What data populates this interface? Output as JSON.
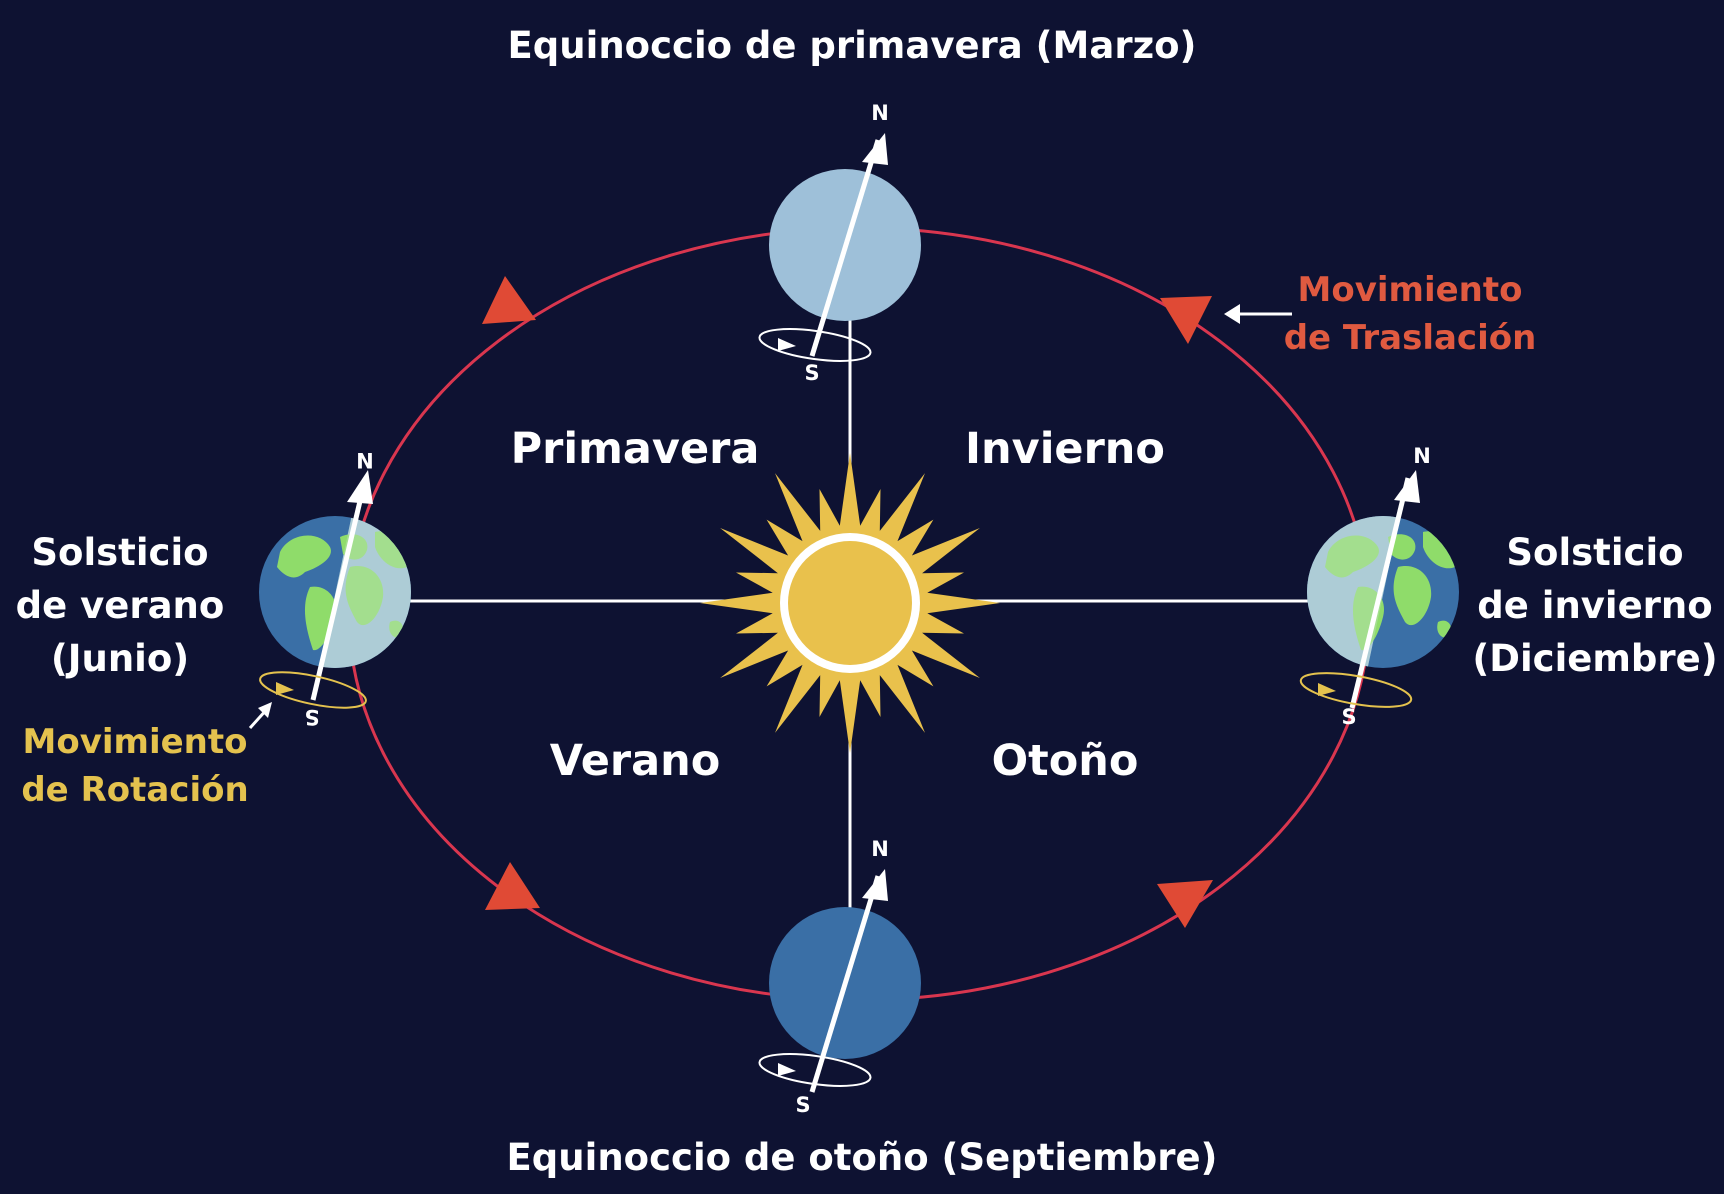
{
  "titles": {
    "top": "Equinoccio de primavera (Marzo)",
    "bottom": "Equinoccio de otoño (Septiembre)"
  },
  "solstices": {
    "left": [
      "Solsticio",
      "de verano",
      "(Junio)"
    ],
    "right": [
      "Solsticio",
      "de invierno",
      "(Diciembre)"
    ]
  },
  "seasons": {
    "top_left": "Primavera",
    "top_right": "Invierno",
    "bottom_left": "Verano",
    "bottom_right": "Otoño"
  },
  "movements": {
    "translation": [
      "Movimiento",
      "de Traslación"
    ],
    "rotation": [
      "Movimiento",
      "de Rotación"
    ]
  },
  "poles": {
    "north": "N",
    "south": "S"
  },
  "colors": {
    "background": "#0e1232",
    "orbit": "#d9364f",
    "orbit_arrows": "#e04a35",
    "sun": "#e9c14c",
    "translation_text": "#e05a40",
    "rotation_text": "#e4c24e",
    "ocean_dark": "#3a6fa6",
    "ocean_light": "#9ec0d9",
    "land": "#8fdc6a"
  },
  "icons": [
    "sun-icon",
    "earth-icon",
    "north-arrow-icon",
    "rotation-ring-icon",
    "orbit-direction-arrow-icon"
  ]
}
